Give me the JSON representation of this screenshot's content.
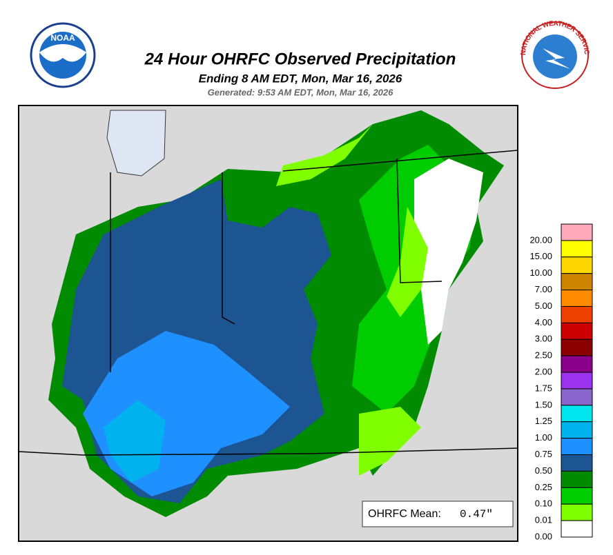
{
  "header": {
    "title": "24 Hour OHRFC Observed Precipitation",
    "subtitle": "Ending 8 AM EDT, Mon, Mar 16, 2026",
    "generated": "Generated: 9:53 AM EDT, Mon, Mar 16, 2026"
  },
  "logos": {
    "noaa": "NOAA",
    "nws": "NATIONAL WEATHER SERVICE"
  },
  "legend": {
    "items": [
      {
        "label": "20.00",
        "color": "#ffaabb"
      },
      {
        "label": "15.00",
        "color": "#ffff00"
      },
      {
        "label": "10.00",
        "color": "#ffd700"
      },
      {
        "label": "7.00",
        "color": "#cd8500"
      },
      {
        "label": "5.00",
        "color": "#ff8c00"
      },
      {
        "label": "4.00",
        "color": "#ee4000"
      },
      {
        "label": "3.00",
        "color": "#cd0000"
      },
      {
        "label": "2.50",
        "color": "#8b0000"
      },
      {
        "label": "2.00",
        "color": "#8b008b"
      },
      {
        "label": "1.75",
        "color": "#9a32ee"
      },
      {
        "label": "1.50",
        "color": "#8866cc"
      },
      {
        "label": "1.25",
        "color": "#00e5ee"
      },
      {
        "label": "1.00",
        "color": "#00b2ee"
      },
      {
        "label": "0.75",
        "color": "#1e90ff"
      },
      {
        "label": "0.50",
        "color": "#1c5592"
      },
      {
        "label": "0.25",
        "color": "#008b00"
      },
      {
        "label": "0.10",
        "color": "#00cd00"
      },
      {
        "label": "0.01",
        "color": "#7fff00"
      },
      {
        "label": "0.00",
        "color": "#ffffff"
      }
    ]
  },
  "mean": {
    "label": "OHRFC Mean:",
    "value": "0.47\""
  }
}
